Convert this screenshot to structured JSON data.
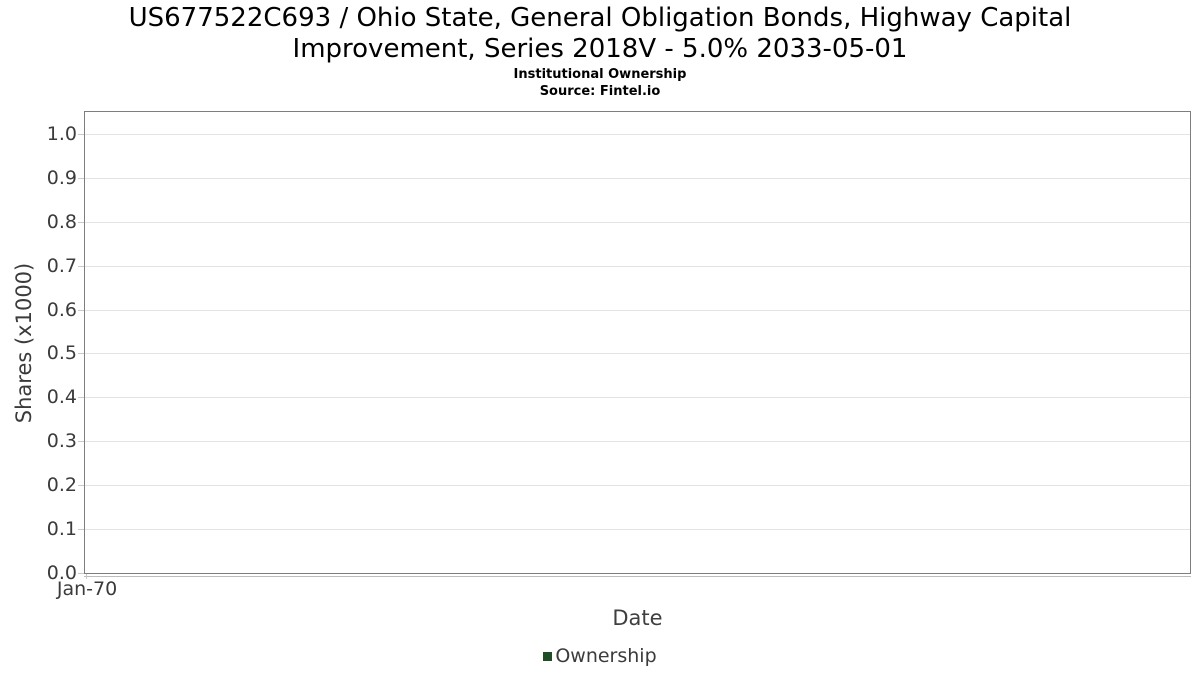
{
  "header": {
    "title_lines": [
      "US677522C693 / Ohio State, General Obligation Bonds, Highway Capital",
      "Improvement, Series 2018V - 5.0% 2033-05-01"
    ],
    "subtitle": "Institutional Ownership",
    "source": "Source: Fintel.io"
  },
  "chart_data": {
    "type": "line",
    "title": "US677522C693 / Ohio State, General Obligation Bonds, Highway Capital Improvement, Series 2018V - 5.0% 2033-05-01",
    "subtitle": "Institutional Ownership",
    "source": "Source: Fintel.io",
    "xlabel": "Date",
    "ylabel": "Shares (x1000)",
    "xticks": [
      "Jan-70"
    ],
    "yticks": [
      "0.0",
      "0.1",
      "0.2",
      "0.3",
      "0.4",
      "0.5",
      "0.6",
      "0.7",
      "0.8",
      "0.9",
      "1.0"
    ],
    "ylim": [
      0,
      1.05
    ],
    "grid": "horizontal",
    "legend_position": "bottom",
    "series": [
      {
        "name": "Ownership",
        "color": "#1e4d26",
        "x": [],
        "values": []
      }
    ],
    "colors": {
      "plot_border": "#7e7e7e",
      "gridline": "#e3e3e3",
      "tick_text": "#3b3b3b",
      "title_text": "#000000",
      "legend_swatch": "#1e4d26"
    }
  }
}
